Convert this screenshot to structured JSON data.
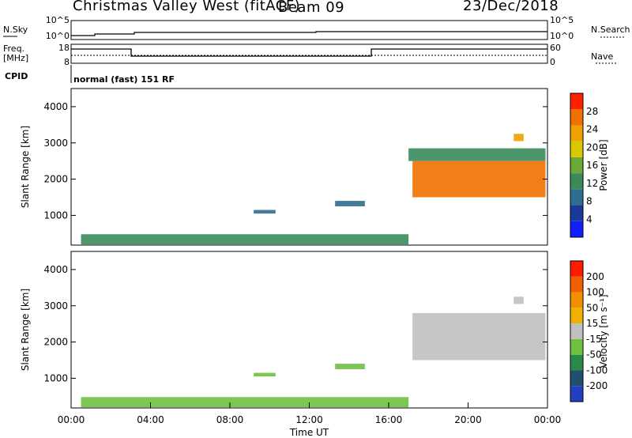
{
  "header": {
    "station": "Christmas Valley West (fitACF)",
    "beam": "Beam 09",
    "date": "23/Dec/2018"
  },
  "panels": {
    "noise": {
      "left_label": "N.Sky",
      "right_label": "N.Search",
      "tick_top": "10^5",
      "tick_bottom": "10^0"
    },
    "freq": {
      "left_label_1": "Freq.",
      "left_label_2": "[MHz]",
      "right_label": "Nave",
      "ticks_left": [
        "18",
        "8"
      ],
      "ticks_right": [
        "60",
        "0"
      ]
    },
    "cpid": {
      "label": "CPID",
      "value": "normal (fast) 151 RF"
    }
  },
  "colors": {
    "power_scale": [
      "#1020ff",
      "#1a3a9a",
      "#2e6e8e",
      "#3a8a5a",
      "#6aa83a",
      "#d8c800",
      "#f0a000",
      "#f07000",
      "#ff2000"
    ],
    "velocity_scale": [
      "#2040c0",
      "#205070",
      "#2a8a4a",
      "#70c040",
      "#c0c0c0",
      "#f0b000",
      "#f09000",
      "#f06000",
      "#ff1a00"
    ]
  },
  "chart_data": [
    {
      "type": "heatmap",
      "title": "Power",
      "xlabel": "",
      "ylabel": "Slant Range [km]",
      "xlim": [
        "00:00",
        "00:00"
      ],
      "ylim": [
        180,
        4500
      ],
      "y_ticks": [
        "1000",
        "2000",
        "3000",
        "4000"
      ],
      "colorbar": {
        "label": "Power [dB]",
        "ticks": [
          "4",
          "8",
          "12",
          "16",
          "20",
          "24",
          "28"
        ],
        "range": [
          0,
          30
        ]
      },
      "regions": [
        {
          "x": [
            17.2,
            23.9
          ],
          "y": [
            1500,
            2500
          ],
          "value": 26
        },
        {
          "x": [
            17.0,
            23.9
          ],
          "y": [
            2500,
            2850
          ],
          "value": 13
        },
        {
          "x": [
            9.2,
            10.3
          ],
          "y": [
            1050,
            1150
          ],
          "value": 8
        },
        {
          "x": [
            13.3,
            14.8
          ],
          "y": [
            1250,
            1400
          ],
          "value": 9
        },
        {
          "x": [
            0.5,
            17.0
          ],
          "y": [
            200,
            480
          ],
          "value": 10
        },
        {
          "x": [
            22.3,
            22.8
          ],
          "y": [
            3050,
            3250
          ],
          "value": 22
        }
      ]
    },
    {
      "type": "heatmap",
      "title": "Velocity",
      "xlabel": "Time UT",
      "ylabel": "Slant Range [km]",
      "x_ticks": [
        "00:00",
        "04:00",
        "08:00",
        "12:00",
        "16:00",
        "20:00",
        "00:00"
      ],
      "xlim": [
        "00:00",
        "00:00"
      ],
      "ylim": [
        180,
        4500
      ],
      "y_ticks": [
        "1000",
        "2000",
        "3000",
        "4000"
      ],
      "colorbar": {
        "label": "Velocity [m s⁻¹]",
        "ticks": [
          "200",
          "100",
          "50",
          "15",
          "-15",
          "-50",
          "-100",
          "-200"
        ],
        "range": [
          -250,
          250
        ]
      },
      "regions": [
        {
          "x": [
            17.2,
            23.9
          ],
          "y": [
            1500,
            2800
          ],
          "value": 0
        },
        {
          "x": [
            9.2,
            10.3
          ],
          "y": [
            1050,
            1150
          ],
          "value": -60
        },
        {
          "x": [
            13.3,
            14.8
          ],
          "y": [
            1250,
            1400
          ],
          "value": -60
        },
        {
          "x": [
            0.5,
            17.0
          ],
          "y": [
            200,
            480
          ],
          "value": -40
        },
        {
          "x": [
            22.3,
            22.8
          ],
          "y": [
            3050,
            3250
          ],
          "value": 0
        }
      ]
    }
  ]
}
